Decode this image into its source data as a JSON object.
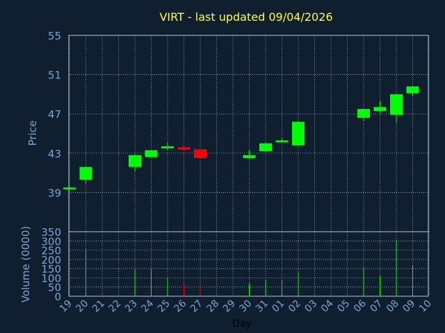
{
  "colors": {
    "background": "#0f1f30",
    "title": "#ffff33",
    "axis_text": "#7ea6cf",
    "frame": "#b8c4d2",
    "grid": "#c8d0da",
    "up": "#00ff00",
    "down": "#ff0000",
    "day_label": "#000000"
  },
  "chart_data": [
    {
      "type": "candlestick",
      "title": "VIRT - last updated 09/04/2026",
      "ylabel": "Price",
      "ylim": [
        35,
        55
      ],
      "yticks": [
        "39",
        "43",
        "47",
        "51",
        "55"
      ],
      "x_tick_labels": [
        "19",
        "20",
        "21",
        "22",
        "23",
        "24",
        "25",
        "26",
        "27",
        "28",
        "29",
        "30",
        "31",
        "01",
        "02",
        "03",
        "04",
        "05",
        "06",
        "07",
        "08",
        "09",
        "10"
      ],
      "grid": true,
      "candles": [
        {
          "day": "19",
          "open": 39.5,
          "high": 39.6,
          "low": 39.3,
          "close": 39.5,
          "dir": "up"
        },
        {
          "day": "20",
          "open": 40.3,
          "high": 41.6,
          "low": 39.9,
          "close": 41.6,
          "dir": "up"
        },
        {
          "day": "23",
          "open": 41.6,
          "high": 42.9,
          "low": 41.1,
          "close": 42.8,
          "dir": "up"
        },
        {
          "day": "24",
          "open": 42.6,
          "high": 43.3,
          "low": 42.6,
          "close": 43.3,
          "dir": "up"
        },
        {
          "day": "25",
          "open": 43.5,
          "high": 44.1,
          "low": 43.3,
          "close": 43.7,
          "dir": "up"
        },
        {
          "day": "26",
          "open": 43.6,
          "high": 43.7,
          "low": 43.3,
          "close": 43.4,
          "dir": "down"
        },
        {
          "day": "27",
          "open": 43.4,
          "high": 43.4,
          "low": 42.5,
          "close": 42.5,
          "dir": "down"
        },
        {
          "day": "30",
          "open": 42.5,
          "high": 43.3,
          "low": 42.4,
          "close": 42.8,
          "dir": "up"
        },
        {
          "day": "31",
          "open": 43.2,
          "high": 44.1,
          "low": 43.1,
          "close": 44.0,
          "dir": "up"
        },
        {
          "day": "01",
          "open": 44.2,
          "high": 44.5,
          "low": 44.1,
          "close": 44.3,
          "dir": "up"
        },
        {
          "day": "02",
          "open": 43.8,
          "high": 46.3,
          "low": 43.8,
          "close": 46.2,
          "dir": "up"
        },
        {
          "day": "06",
          "open": 46.6,
          "high": 47.6,
          "low": 46.3,
          "close": 47.5,
          "dir": "up"
        },
        {
          "day": "07",
          "open": 47.3,
          "high": 48.3,
          "low": 47.1,
          "close": 47.7,
          "dir": "up"
        },
        {
          "day": "08",
          "open": 46.9,
          "high": 49.1,
          "low": 46.1,
          "close": 49.0,
          "dir": "up"
        },
        {
          "day": "09",
          "open": 49.1,
          "high": 49.9,
          "low": 48.8,
          "close": 49.8,
          "dir": "up"
        }
      ]
    },
    {
      "type": "bar",
      "xlabel": "Day",
      "ylabel": "Volume (0000)",
      "ylim": [
        0,
        350
      ],
      "yticks": [
        "0",
        "50",
        "100",
        "150",
        "200",
        "250",
        "300",
        "350"
      ],
      "x_tick_labels": [
        "19",
        "20",
        "21",
        "22",
        "23",
        "24",
        "25",
        "26",
        "27",
        "28",
        "29",
        "30",
        "31",
        "01",
        "02",
        "03",
        "04",
        "05",
        "06",
        "07",
        "08",
        "09",
        "10"
      ],
      "grid": true,
      "bars": [
        {
          "day": "20",
          "value": 255,
          "dir": "up"
        },
        {
          "day": "23",
          "value": 145,
          "dir": "up"
        },
        {
          "day": "24",
          "value": 150,
          "dir": "up"
        },
        {
          "day": "25",
          "value": 100,
          "dir": "up"
        },
        {
          "day": "26",
          "value": 65,
          "dir": "down"
        },
        {
          "day": "27",
          "value": 65,
          "dir": "down"
        },
        {
          "day": "30",
          "value": 70,
          "dir": "up"
        },
        {
          "day": "31",
          "value": 90,
          "dir": "up"
        },
        {
          "day": "01",
          "value": 90,
          "dir": "up"
        },
        {
          "day": "02",
          "value": 130,
          "dir": "up"
        },
        {
          "day": "06",
          "value": 155,
          "dir": "up"
        },
        {
          "day": "07",
          "value": 110,
          "dir": "up"
        },
        {
          "day": "08",
          "value": 305,
          "dir": "up"
        },
        {
          "day": "09",
          "value": 170,
          "dir": "up"
        }
      ]
    }
  ]
}
